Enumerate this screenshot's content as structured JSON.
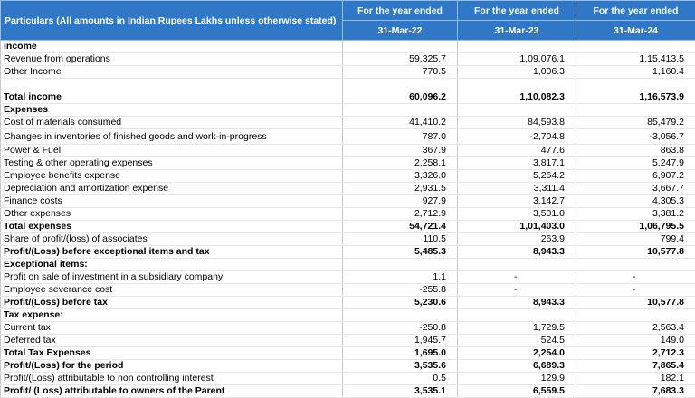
{
  "table": {
    "particulars": "Particulars  (All amounts in Indian Rupees Lakhs unless otherwise stated)",
    "columns": [
      {
        "title": "For the year ended",
        "date": "31-Mar-22"
      },
      {
        "title": "For the year ended",
        "date": "31-Mar-23"
      },
      {
        "title": "For the year ended",
        "date": "31-Mar-24"
      }
    ],
    "rows": [
      {
        "cells": [
          "Income"
        ],
        "bold": true
      },
      {
        "cells": [
          "Revenue from operations",
          "59,325.7",
          "1,09,076.1",
          "1,15,413.5"
        ]
      },
      {
        "cells": [
          "Other Income",
          "770.5",
          "1,006.3",
          "1,160.4"
        ]
      },
      {
        "cells": [
          "Total income",
          "60,096.2",
          "1,10,082.3",
          "1,16,573.9"
        ],
        "bold": true
      },
      {
        "cells": [
          "Expenses"
        ],
        "bold": true
      },
      {
        "cells": [
          "Cost of materials consumed",
          "41,410.2",
          "84,593.8",
          "85,479.2"
        ]
      },
      {
        "cells": [
          "Changes in inventories of finished goods and work-in-progress",
          "787.0",
          "-2,704.8",
          "-3,056.7"
        ]
      },
      {
        "cells": [
          "Power & Fuel",
          "367.9",
          "477.6",
          "863.8"
        ]
      },
      {
        "cells": [
          "Testing & other operating expenses",
          "2,258.1",
          "3,817.1",
          "5,247.9"
        ]
      },
      {
        "cells": [
          "Employee benefits expense",
          "3,326.0",
          "5,264.2",
          "6,907.2"
        ]
      },
      {
        "cells": [
          "Depreciation and amortization expense",
          "2,931.5",
          "3,311.4",
          "3,667.7"
        ]
      },
      {
        "cells": [
          "Finance costs",
          "927.9",
          "3,142.7",
          "4,305.3"
        ]
      },
      {
        "cells": [
          "Other expenses",
          "2,712.9",
          "3,501.0",
          "3,381.2"
        ]
      },
      {
        "cells": [
          "Total expenses",
          "54,721.4",
          "1,01,403.0",
          "1,06,795.5"
        ],
        "bold": true
      },
      {
        "cells": [
          "Share of profit/(loss) of associates",
          "110.5",
          "263.9",
          "799.4"
        ]
      },
      {
        "cells": [
          "Profit/(Loss) before exceptional items and tax",
          "5,485.3",
          "8,943.3",
          "10,577.8"
        ],
        "bold": true
      },
      {
        "cells": [
          "Exceptional items:"
        ],
        "bold": true
      },
      {
        "cells": [
          "Profit on sale of investment in a subsidiary company",
          "1.1",
          "-",
          "-"
        ]
      },
      {
        "cells": [
          "Employee severance cost",
          "-255.8",
          "-",
          "-"
        ]
      },
      {
        "cells": [
          "Profit/(Loss) before tax",
          "5,230.6",
          "8,943.3",
          "10,577.8"
        ],
        "bold": true
      },
      {
        "cells": [
          "Tax expense:"
        ],
        "bold": true
      },
      {
        "cells": [
          "Current tax",
          "-250.8",
          "1,729.5",
          "2,563.4"
        ]
      },
      {
        "cells": [
          "Deferred tax",
          "1,945.7",
          "524.5",
          "149.0"
        ]
      },
      {
        "cells": [
          "Total Tax Expenses",
          "1,695.0",
          "2,254.0",
          "2,712.3"
        ],
        "bold": true
      },
      {
        "cells": [
          "Profit/(Loss) for the period",
          "3,535.6",
          "6,689.3",
          "7,865.4"
        ],
        "bold": true
      },
      {
        "cells": [
          "Profit/(Loss) attributable to non controlling interest",
          "0.5",
          "129.9",
          "182.1"
        ]
      },
      {
        "cells": [
          "Profit/ (Loss) attributable to owners of the Parent",
          "3,535.1",
          "6,559.5",
          "7,683.3"
        ],
        "bold": true
      }
    ]
  }
}
